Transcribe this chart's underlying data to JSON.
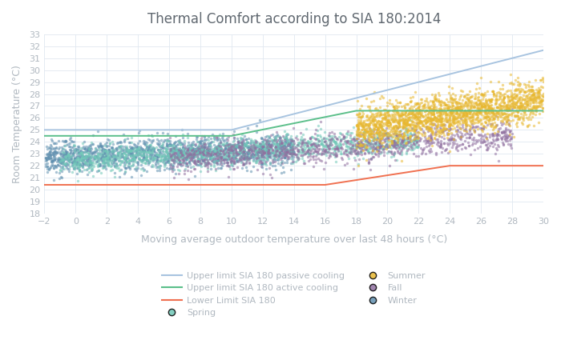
{
  "title": "Thermal Comfort according to SIA 180:2014",
  "xlabel": "Moving average outdoor temperature over last 48 hours (°C)",
  "ylabel": "Room Temperature (°C)",
  "xlim": [
    -2,
    30
  ],
  "ylim": [
    18,
    33
  ],
  "xticks": [
    -2,
    0,
    2,
    4,
    6,
    8,
    10,
    12,
    14,
    16,
    18,
    20,
    22,
    24,
    26,
    28,
    30
  ],
  "yticks": [
    18,
    19,
    20,
    21,
    22,
    23,
    24,
    25,
    26,
    27,
    28,
    29,
    30,
    31,
    32,
    33
  ],
  "upper_passive": {
    "x": [
      -2,
      10,
      30
    ],
    "y": [
      25.0,
      25.0,
      31.67
    ],
    "color": "#a8c4e0",
    "label": "Upper limit SIA 180 passive cooling"
  },
  "upper_active": {
    "x": [
      -2,
      10,
      18,
      30
    ],
    "y": [
      24.5,
      24.5,
      26.6,
      26.6
    ],
    "color": "#5bbf8a",
    "label": "Upper limit SIA 180 active cooling"
  },
  "lower_limit": {
    "x": [
      -2,
      16,
      24,
      30
    ],
    "y": [
      20.4,
      20.4,
      22.0,
      22.0
    ],
    "color": "#f07050",
    "label": "Lower Limit SIA 180"
  },
  "seasons": {
    "Winter": {
      "color": "#6090b0",
      "alpha": 0.55,
      "size": 6
    },
    "Spring": {
      "color": "#70c8b8",
      "alpha": 0.55,
      "size": 6
    },
    "Summer": {
      "color": "#e8b830",
      "alpha": 0.55,
      "size": 6
    },
    "Fall": {
      "color": "#9070a0",
      "alpha": 0.55,
      "size": 6
    }
  },
  "seed": 42,
  "background_color": "#ffffff",
  "grid_color": "#e0e8f0",
  "text_color": "#b0b8c0",
  "title_color": "#606870"
}
